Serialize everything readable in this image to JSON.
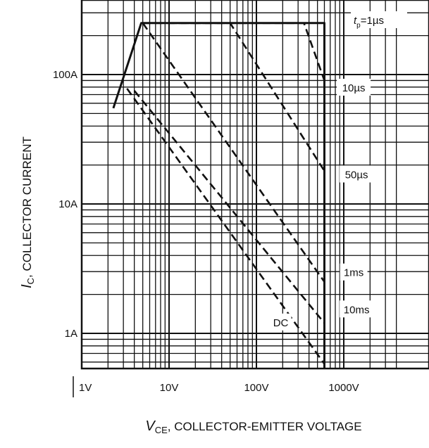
{
  "chart_data": {
    "type": "line",
    "title": "",
    "xlabel": {
      "symbol": "V",
      "subscript": "CE",
      "text": ", COLLECTOR-EMITTER VOLTAGE"
    },
    "ylabel": {
      "symbol": "I",
      "subscript": "C",
      "text": ", COLLECTOR CURRENT"
    },
    "x_scale": "log",
    "y_scale": "log",
    "xlim": [
      1,
      4000
    ],
    "ylim": [
      0.5,
      300
    ],
    "x_ticks": [
      {
        "value": 1,
        "label": "1V"
      },
      {
        "value": 10,
        "label": "10V"
      },
      {
        "value": 100,
        "label": "100V"
      },
      {
        "value": 1000,
        "label": "1000V"
      }
    ],
    "y_ticks": [
      {
        "value": 1,
        "label": "1A"
      },
      {
        "value": 10,
        "label": "10A"
      },
      {
        "value": 100,
        "label": "100A"
      }
    ],
    "grid": true,
    "series": [
      {
        "name": "tp=1µs",
        "label_parts": {
          "italic": "t",
          "sub": "p",
          "rest": "=1µs"
        },
        "style": "dashed",
        "points": [
          [
            5,
            250
          ],
          [
            350,
            250
          ],
          [
            600,
            90
          ]
        ]
      },
      {
        "name": "10µs",
        "style": "dashed",
        "points": [
          [
            10,
            250
          ],
          [
            50,
            250
          ],
          [
            600,
            18
          ]
        ]
      },
      {
        "name": "50µs",
        "style": "dashed",
        "points": [
          [
            5,
            250
          ],
          [
            600,
            2.5
          ]
        ]
      },
      {
        "name": "1ms",
        "style": "dashed",
        "points": [
          [
            4,
            75
          ],
          [
            600,
            1.2
          ]
        ]
      },
      {
        "name": "10ms",
        "style": "dashed",
        "points": [
          [
            3.3,
            78
          ],
          [
            600,
            0.58
          ]
        ]
      },
      {
        "name": "DC",
        "style": "solid",
        "points": [
          [
            2.3,
            55
          ],
          [
            4.8,
            250
          ],
          [
            600,
            250
          ],
          [
            600,
            0.45
          ]
        ]
      }
    ],
    "curve_labels": [
      {
        "text": "10µs",
        "x": 1300,
        "y": 75
      },
      {
        "text": "50µs",
        "x": 1400,
        "y": 16
      },
      {
        "text": "1ms",
        "x": 1300,
        "y": 2.8
      },
      {
        "text": "10ms",
        "x": 1400,
        "y": 1.45
      },
      {
        "text": "DC",
        "x": 190,
        "y": 1.15
      }
    ]
  }
}
